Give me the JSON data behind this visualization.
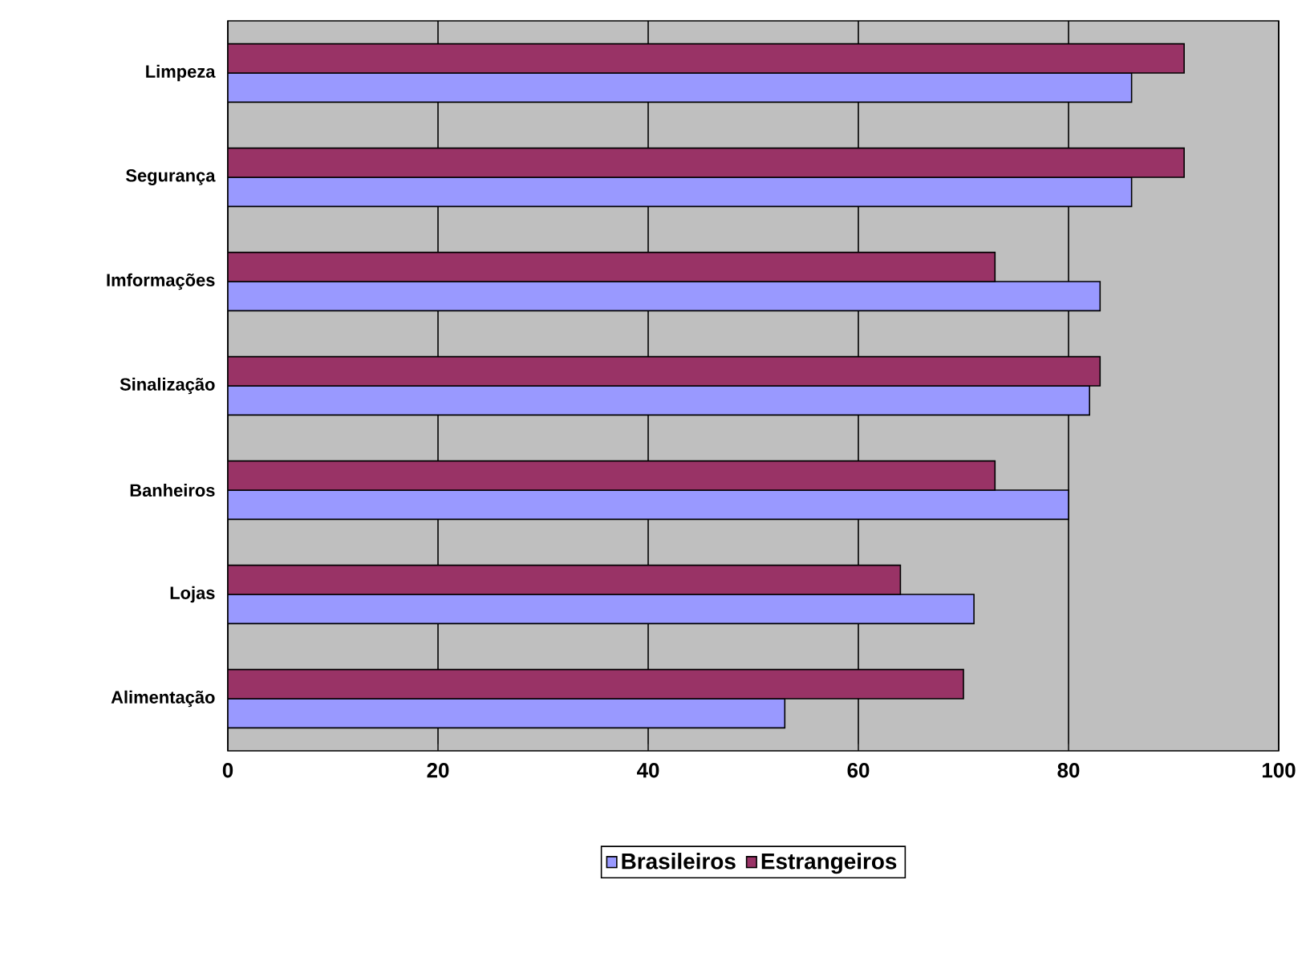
{
  "chart_data": {
    "type": "bar",
    "orientation": "horizontal",
    "categories": [
      "Limpeza",
      "Segurança",
      "Imformações",
      "Sinalização",
      "Banheiros",
      "Lojas",
      "Alimentação"
    ],
    "series": [
      {
        "name": "Brasileiros",
        "color": "#9999ff",
        "values": [
          86,
          86,
          83,
          82,
          80,
          71,
          53
        ]
      },
      {
        "name": "Estrangeiros",
        "color": "#993366",
        "values": [
          91,
          91,
          73,
          83,
          73,
          64,
          70
        ]
      }
    ],
    "xlim": [
      0,
      100
    ],
    "xticks": [
      0,
      20,
      40,
      60,
      80,
      100
    ],
    "grid": "x",
    "legend": "bottom"
  }
}
